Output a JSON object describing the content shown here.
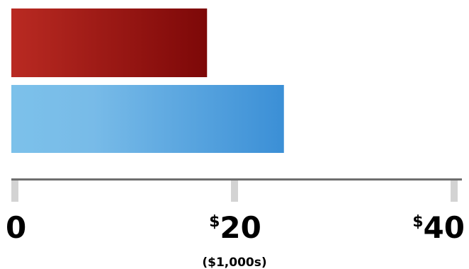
{
  "chart_data": {
    "type": "bar",
    "orientation": "horizontal",
    "values": [
      17.5,
      24.5
    ],
    "colors": [
      "#b3221c",
      "#3b8fd6"
    ],
    "xlim": [
      0,
      40
    ],
    "ticks": [
      {
        "value": 0,
        "prefix": "",
        "label": "0"
      },
      {
        "value": 20,
        "prefix": "$",
        "label": "20"
      },
      {
        "value": 40,
        "prefix": "$",
        "label": "40"
      }
    ],
    "xlabel": "($1,000s)",
    "grid": false,
    "legend": "none"
  }
}
